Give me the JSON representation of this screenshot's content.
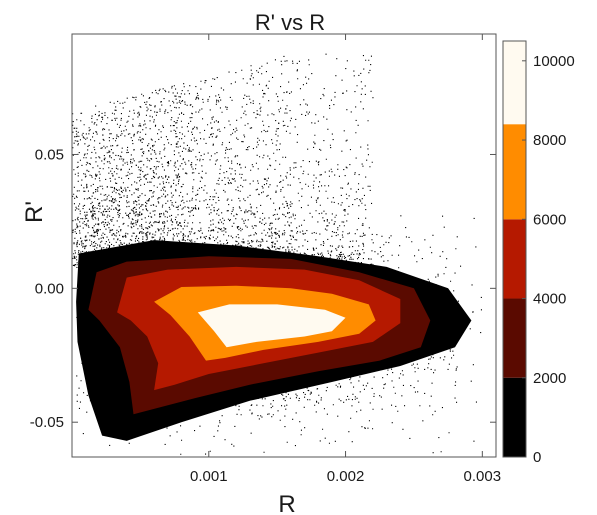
{
  "chart_data": {
    "type": "heatmap",
    "title": "R' vs R",
    "xlabel": "R",
    "ylabel": "R'",
    "xlim": [
      0.0,
      0.0031
    ],
    "ylim": [
      -0.063,
      0.095
    ],
    "xticks": [
      {
        "value": 0.001,
        "label": "0.001"
      },
      {
        "value": 0.002,
        "label": "0.002"
      },
      {
        "value": 0.003,
        "label": "0.003"
      }
    ],
    "yticks": [
      {
        "value": 0.05,
        "label": "0.05"
      },
      {
        "value": 0.0,
        "label": "0.00"
      },
      {
        "value": -0.05,
        "label": "-0.05"
      }
    ],
    "colorbar": {
      "range": [
        0,
        10500
      ],
      "ticks": [
        {
          "value": 0,
          "label": "0"
        },
        {
          "value": 2000,
          "label": "2000"
        },
        {
          "value": 4000,
          "label": "4000"
        },
        {
          "value": 6000,
          "label": "6000"
        },
        {
          "value": 8000,
          "label": "8000"
        },
        {
          "value": 10000,
          "label": "10000"
        }
      ],
      "bands": [
        {
          "from": 0,
          "to": 2000,
          "color": "#000000"
        },
        {
          "from": 2000,
          "to": 4000,
          "color": "#5a0a00"
        },
        {
          "from": 4000,
          "to": 6000,
          "color": "#b51900"
        },
        {
          "from": 6000,
          "to": 8400,
          "color": "#ff8c00"
        },
        {
          "from": 8400,
          "to": 10500,
          "color": "#fffaf0"
        }
      ]
    },
    "density_contours": [
      {
        "level": 2000,
        "color": "#5a0a00",
        "points": [
          [
            0.00012,
            -0.008
          ],
          [
            0.00018,
            0.006
          ],
          [
            0.0004,
            0.01
          ],
          [
            0.001,
            0.012
          ],
          [
            0.0016,
            0.011
          ],
          [
            0.0021,
            0.006
          ],
          [
            0.0025,
            0.0
          ],
          [
            0.00262,
            -0.012
          ],
          [
            0.00255,
            -0.022
          ],
          [
            0.00225,
            -0.027
          ],
          [
            0.0018,
            -0.031
          ],
          [
            0.0013,
            -0.036
          ],
          [
            0.0009,
            -0.041
          ],
          [
            0.00045,
            -0.047
          ],
          [
            0.00042,
            -0.035
          ],
          [
            0.00035,
            -0.022
          ],
          [
            0.0002,
            -0.012
          ]
        ]
      },
      {
        "level": 4000,
        "color": "#b51900",
        "points": [
          [
            0.00033,
            -0.009
          ],
          [
            0.0004,
            0.004
          ],
          [
            0.0007,
            0.007
          ],
          [
            0.0012,
            0.008
          ],
          [
            0.0017,
            0.007
          ],
          [
            0.0021,
            0.003
          ],
          [
            0.0024,
            -0.004
          ],
          [
            0.0024,
            -0.013
          ],
          [
            0.0022,
            -0.02
          ],
          [
            0.0018,
            -0.024
          ],
          [
            0.0014,
            -0.028
          ],
          [
            0.001,
            -0.032
          ],
          [
            0.00075,
            -0.036
          ],
          [
            0.0006,
            -0.038
          ],
          [
            0.00063,
            -0.028
          ],
          [
            0.00055,
            -0.018
          ],
          [
            0.00043,
            -0.012
          ]
        ]
      },
      {
        "level": 6000,
        "color": "#ff8c00",
        "points": [
          [
            0.0006,
            -0.005
          ],
          [
            0.0008,
            0.0005
          ],
          [
            0.0012,
            0.001
          ],
          [
            0.0016,
            0.0
          ],
          [
            0.0019,
            -0.002
          ],
          [
            0.00217,
            -0.006
          ],
          [
            0.00222,
            -0.012
          ],
          [
            0.0021,
            -0.017
          ],
          [
            0.0018,
            -0.02
          ],
          [
            0.0014,
            -0.023
          ],
          [
            0.00112,
            -0.026
          ],
          [
            0.00098,
            -0.027
          ],
          [
            0.00086,
            -0.018
          ],
          [
            0.00072,
            -0.01
          ]
        ]
      },
      {
        "level": 8400,
        "color": "#fffaf0",
        "points": [
          [
            0.00092,
            -0.009
          ],
          [
            0.00115,
            -0.006
          ],
          [
            0.0015,
            -0.006
          ],
          [
            0.00185,
            -0.008
          ],
          [
            0.002,
            -0.011
          ],
          [
            0.0019,
            -0.016
          ],
          [
            0.0017,
            -0.018
          ],
          [
            0.00135,
            -0.02
          ],
          [
            0.00113,
            -0.022
          ],
          [
            0.00104,
            -0.016
          ]
        ]
      }
    ]
  }
}
